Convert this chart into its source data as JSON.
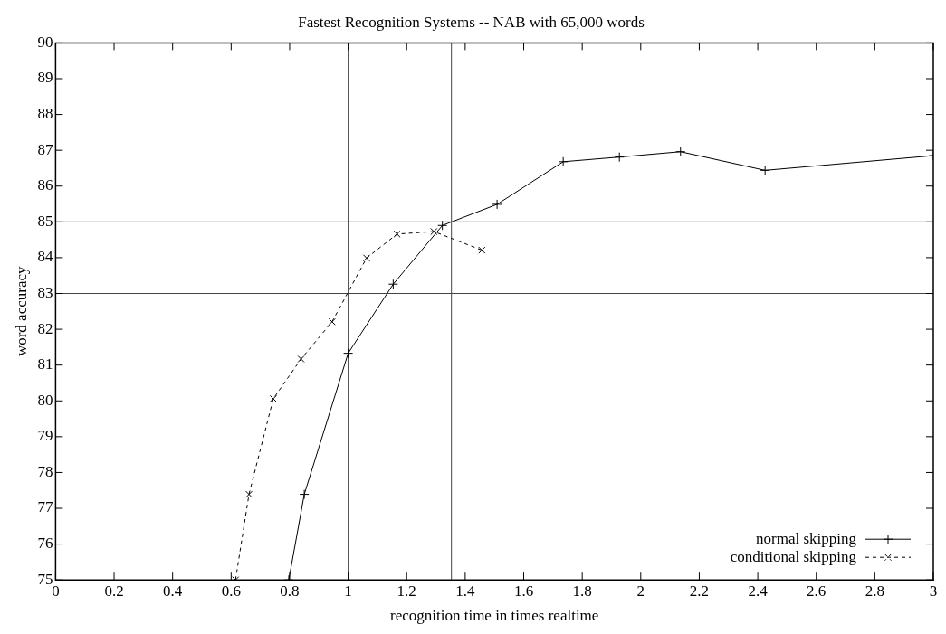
{
  "chart_data": {
    "type": "line",
    "title": "Fastest Recognition Systems -- NAB with 65,000 words",
    "xlabel": "recognition time in times realtime",
    "ylabel": "word accuracy",
    "xlim": [
      0,
      3
    ],
    "xticks": [
      0,
      0.2,
      0.4,
      0.6,
      0.8,
      1,
      1.2,
      1.4,
      1.6,
      1.8,
      2,
      2.2,
      2.4,
      2.6,
      2.8,
      3
    ],
    "ylim": [
      75,
      90
    ],
    "yticks": [
      75,
      76,
      77,
      78,
      79,
      80,
      81,
      82,
      83,
      84,
      85,
      86,
      87,
      88,
      89,
      90
    ],
    "grid": false,
    "legend": "bottom right",
    "series": [
      {
        "name": "normal skipping",
        "color": "#000000",
        "marker": "cross",
        "line_style": "solid",
        "x": [
          0.797,
          0.85,
          1.0,
          1.154,
          1.322,
          1.509,
          1.735,
          1.927,
          2.136,
          2.425,
          3.0
        ],
        "values": [
          75,
          77.39,
          81.33,
          83.26,
          84.9,
          85.49,
          86.68,
          86.81,
          86.96,
          86.44,
          86.85
        ]
      },
      {
        "name": "conditional skipping",
        "color": "#000000",
        "marker": "cross",
        "line_style": "dashed",
        "x": [
          0.615,
          0.661,
          0.744,
          0.839,
          0.945,
          1.063,
          1.167,
          1.293,
          1.457
        ],
        "values": [
          75,
          77.39,
          80.06,
          81.17,
          82.21,
          83.99,
          84.66,
          84.73,
          84.21
        ]
      }
    ],
    "ref_lines": [
      {
        "axis": "x",
        "value": 1
      },
      {
        "axis": "x",
        "value": 1.353
      },
      {
        "axis": "y",
        "value": 85
      },
      {
        "axis": "y",
        "value": 83
      }
    ]
  }
}
